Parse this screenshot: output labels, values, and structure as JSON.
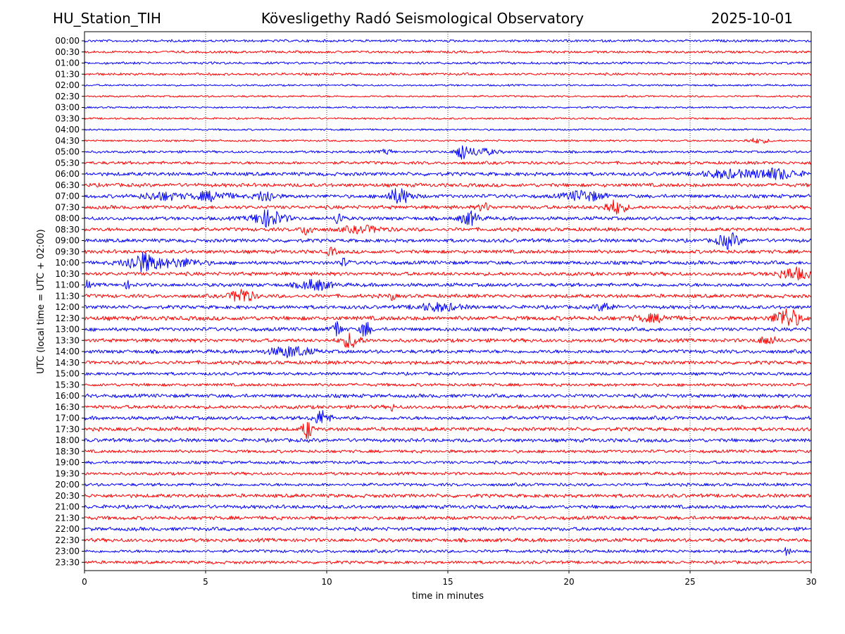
{
  "header": {
    "station": "HU_Station_TIH",
    "observatory": "Kövesligethy Radó Seismological Observatory",
    "date": "2025-10-01"
  },
  "chart_data": {
    "type": "line",
    "title": "Kövesligethy Radó Seismological Observatory",
    "xlabel": "time in minutes",
    "ylabel": "UTC (local time = UTC + 02:00)",
    "xlim": [
      0,
      30
    ],
    "x_ticks": [
      "0",
      "5",
      "10",
      "15",
      "20",
      "25",
      "30"
    ],
    "grid": "vertical dotted at 5-minute ticks",
    "colors": {
      "even_row": "#0000ff",
      "odd_row": "#ff0000"
    },
    "rows": [
      "00:00",
      "00:30",
      "01:00",
      "01:30",
      "02:00",
      "02:30",
      "03:00",
      "03:30",
      "04:00",
      "04:30",
      "05:00",
      "05:30",
      "06:00",
      "06:30",
      "07:00",
      "07:30",
      "08:00",
      "08:30",
      "09:00",
      "09:30",
      "10:00",
      "10:30",
      "11:00",
      "11:30",
      "12:00",
      "12:30",
      "13:00",
      "13:30",
      "14:00",
      "14:30",
      "15:00",
      "15:30",
      "16:00",
      "16:30",
      "17:00",
      "17:30",
      "18:00",
      "18:30",
      "19:00",
      "19:30",
      "20:00",
      "20:30",
      "21:00",
      "21:30",
      "22:00",
      "22:30",
      "23:00",
      "23:30"
    ],
    "noise_level": [
      2,
      2,
      2,
      2,
      1.5,
      1.5,
      1.5,
      1.5,
      1.5,
      1.5,
      2,
      2.5,
      3,
      3,
      3,
      3,
      3,
      3,
      3,
      3,
      3,
      3,
      3,
      3,
      3,
      3.5,
      3,
      3,
      3,
      3,
      2.5,
      2.5,
      3,
      3,
      3,
      3,
      3,
      2.5,
      2.5,
      2.5,
      2.5,
      3,
      3,
      3,
      3,
      3,
      2.5,
      2.5
    ],
    "events": [
      {
        "row": "04:30",
        "t": 27.8,
        "amp": 3,
        "dur": 0.8
      },
      {
        "row": "05:00",
        "t": 15.55,
        "amp": 14,
        "dur": 0.25
      },
      {
        "row": "05:00",
        "t": 16.2,
        "amp": 5,
        "dur": 1.2
      },
      {
        "row": "05:00",
        "t": 12.5,
        "amp": 3,
        "dur": 0.4
      },
      {
        "row": "06:00",
        "t": 26.5,
        "amp": 5,
        "dur": 1.5
      },
      {
        "row": "06:00",
        "t": 28.5,
        "amp": 7,
        "dur": 1.5
      },
      {
        "row": "07:00",
        "t": 3.2,
        "amp": 5,
        "dur": 1.3
      },
      {
        "row": "07:00",
        "t": 5.3,
        "amp": 6,
        "dur": 1.2
      },
      {
        "row": "07:00",
        "t": 7.5,
        "amp": 8,
        "dur": 0.6
      },
      {
        "row": "07:00",
        "t": 13.0,
        "amp": 10,
        "dur": 0.8
      },
      {
        "row": "07:00",
        "t": 20.6,
        "amp": 7,
        "dur": 1.2
      },
      {
        "row": "07:30",
        "t": 16.5,
        "amp": 5,
        "dur": 0.4
      },
      {
        "row": "07:30",
        "t": 21.9,
        "amp": 9,
        "dur": 0.7
      },
      {
        "row": "08:00",
        "t": 7.6,
        "amp": 11,
        "dur": 1.0
      },
      {
        "row": "08:00",
        "t": 10.5,
        "amp": 13,
        "dur": 0.2
      },
      {
        "row": "08:00",
        "t": 15.9,
        "amp": 9,
        "dur": 0.6
      },
      {
        "row": "08:30",
        "t": 9.2,
        "amp": 7,
        "dur": 0.4
      },
      {
        "row": "08:30",
        "t": 11.5,
        "amp": 4,
        "dur": 1.4
      },
      {
        "row": "09:00",
        "t": 26.6,
        "amp": 10,
        "dur": 0.7
      },
      {
        "row": "09:30",
        "t": 10.2,
        "amp": 5,
        "dur": 0.3
      },
      {
        "row": "10:00",
        "t": 2.4,
        "amp": 13,
        "dur": 1.1
      },
      {
        "row": "10:00",
        "t": 4.0,
        "amp": 5,
        "dur": 1.4
      },
      {
        "row": "10:00",
        "t": 10.7,
        "amp": 5,
        "dur": 0.3
      },
      {
        "row": "10:30",
        "t": 29.3,
        "amp": 8,
        "dur": 1.0
      },
      {
        "row": "11:00",
        "t": 0.1,
        "amp": 8,
        "dur": 0.15
      },
      {
        "row": "11:00",
        "t": 9.5,
        "amp": 7,
        "dur": 1.0
      },
      {
        "row": "11:00",
        "t": 1.8,
        "amp": 5,
        "dur": 0.2
      },
      {
        "row": "11:30",
        "t": 6.5,
        "amp": 10,
        "dur": 0.7
      },
      {
        "row": "11:30",
        "t": 12.7,
        "amp": 5,
        "dur": 0.2
      },
      {
        "row": "12:00",
        "t": 14.6,
        "amp": 5,
        "dur": 1.4
      },
      {
        "row": "12:00",
        "t": 21.5,
        "amp": 5,
        "dur": 0.6
      },
      {
        "row": "12:30",
        "t": 29.0,
        "amp": 14,
        "dur": 0.8
      },
      {
        "row": "12:30",
        "t": 23.5,
        "amp": 4,
        "dur": 1.2
      },
      {
        "row": "13:00",
        "t": 10.4,
        "amp": 12,
        "dur": 0.3
      },
      {
        "row": "13:00",
        "t": 11.6,
        "amp": 12,
        "dur": 0.3
      },
      {
        "row": "13:30",
        "t": 11.0,
        "amp": 10,
        "dur": 0.6
      },
      {
        "row": "13:30",
        "t": 28.2,
        "amp": 5,
        "dur": 0.6
      },
      {
        "row": "14:00",
        "t": 8.5,
        "amp": 7,
        "dur": 1.3
      },
      {
        "row": "16:30",
        "t": 12.7,
        "amp": 5,
        "dur": 0.15
      },
      {
        "row": "17:00",
        "t": 9.8,
        "amp": 10,
        "dur": 0.5
      },
      {
        "row": "17:30",
        "t": 9.2,
        "amp": 14,
        "dur": 0.3
      },
      {
        "row": "23:00",
        "t": 29.0,
        "amp": 5,
        "dur": 0.2
      }
    ]
  }
}
